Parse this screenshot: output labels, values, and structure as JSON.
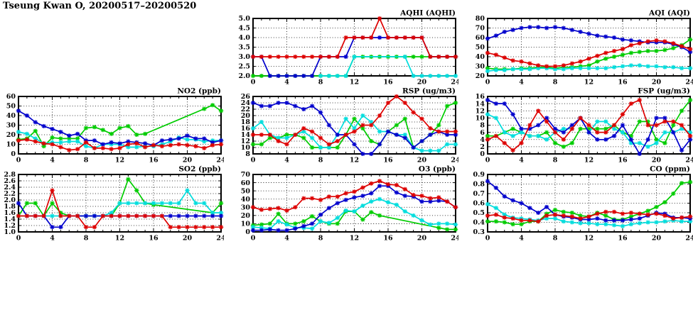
{
  "page_title": "Tseung Kwan O, 20200517–20200520",
  "x_axis": {
    "min": 0,
    "max": 24,
    "ticks": [
      0,
      4,
      8,
      12,
      16,
      20,
      24
    ],
    "minor_step": 1
  },
  "series_colors": {
    "day1": "#0000cc",
    "day2": "#dd0000",
    "day3": "#00cc00",
    "day4": "#00dddd"
  },
  "chart_data": [
    {
      "id": "aqhi",
      "type": "line",
      "title": "AQHI (AQHI)",
      "ylim": [
        2.0,
        5.0
      ],
      "ystep": 0.5,
      "ydec": 1,
      "grid": true,
      "series": [
        {
          "name": "green-day",
          "color": "#00cc00",
          "values": [
            2,
            2,
            2,
            2,
            2,
            2,
            2,
            2,
            2,
            2,
            2,
            2,
            3,
            3,
            3,
            3,
            3,
            3,
            3,
            3,
            3,
            3,
            3,
            3,
            3
          ]
        },
        {
          "name": "cyan-day",
          "color": "#00dddd",
          "values": [
            null,
            null,
            null,
            null,
            null,
            null,
            null,
            null,
            2,
            2,
            2,
            2,
            3,
            null,
            null,
            null,
            null,
            null,
            3,
            2,
            2,
            2,
            2,
            2,
            2
          ]
        },
        {
          "name": "blue-day",
          "color": "#0000cc",
          "values": [
            3,
            3,
            2,
            2,
            2,
            2,
            2,
            2,
            3,
            3,
            3,
            3,
            4,
            4,
            4,
            4,
            4,
            4,
            4,
            4,
            4,
            3,
            3,
            3,
            3
          ]
        },
        {
          "name": "red-day",
          "color": "#dd0000",
          "values": [
            3,
            3,
            3,
            3,
            3,
            3,
            3,
            3,
            3,
            3,
            3,
            4,
            4,
            4,
            4,
            5,
            4,
            4,
            4,
            4,
            4,
            3,
            3,
            3,
            3
          ]
        }
      ]
    },
    {
      "id": "aqi",
      "type": "line",
      "title": "AQI (AQI)",
      "ylim": [
        20,
        80
      ],
      "ystep": 10,
      "ydec": 0,
      "grid": true,
      "series": [
        {
          "name": "green-day",
          "color": "#00cc00",
          "values": [
            28,
            27,
            27,
            27,
            28,
            28,
            29,
            29,
            28,
            29,
            29,
            30,
            31,
            35,
            38,
            40,
            42,
            44,
            45,
            46,
            46,
            47,
            49,
            52,
            58
          ]
        },
        {
          "name": "cyan-day",
          "color": "#00dddd",
          "values": [
            25,
            26,
            26,
            27,
            27,
            27,
            28,
            28,
            27,
            27,
            28,
            28,
            28,
            28,
            28,
            29,
            30,
            31,
            31,
            30,
            30,
            29,
            29,
            28,
            28
          ]
        },
        {
          "name": "blue-day",
          "color": "#0000cc",
          "values": [
            59,
            62,
            66,
            68,
            70,
            71,
            71,
            70,
            71,
            70,
            68,
            66,
            64,
            62,
            61,
            60,
            58,
            57,
            56,
            55,
            55,
            55,
            53,
            50,
            45
          ]
        },
        {
          "name": "red-day",
          "color": "#dd0000",
          "values": [
            44,
            42,
            39,
            36,
            35,
            33,
            31,
            30,
            30,
            31,
            33,
            35,
            38,
            41,
            44,
            46,
            48,
            52,
            54,
            56,
            57,
            56,
            54,
            51,
            48
          ]
        }
      ]
    },
    {
      "id": "no2",
      "type": "line",
      "title": "NO2 (ppb)",
      "ylim": [
        0,
        60
      ],
      "ystep": 10,
      "ydec": 0,
      "grid": true,
      "series": [
        {
          "name": "green-day",
          "color": "#00cc00",
          "values": [
            15,
            16,
            24,
            8,
            17,
            16,
            16,
            16,
            27,
            28,
            25,
            21,
            27,
            29,
            20,
            21,
            null,
            null,
            null,
            null,
            null,
            null,
            47,
            51,
            45
          ]
        },
        {
          "name": "cyan-day",
          "color": "#00dddd",
          "values": [
            23,
            21,
            16,
            11,
            12,
            12,
            13,
            13,
            8,
            6,
            10,
            10,
            10,
            7,
            7,
            8,
            8,
            10,
            13,
            17,
            15,
            15,
            13,
            14,
            14
          ]
        },
        {
          "name": "blue-day",
          "color": "#0000cc",
          "values": [
            45,
            40,
            33,
            29,
            26,
            23,
            19,
            21,
            14,
            14,
            10,
            12,
            11,
            13,
            12,
            11,
            9,
            14,
            15,
            16,
            19,
            16,
            16,
            12,
            14
          ]
        },
        {
          "name": "red-day",
          "color": "#dd0000",
          "values": [
            14,
            15,
            13,
            11,
            10,
            7,
            4,
            5,
            12,
            6,
            6,
            5,
            6,
            10,
            11,
            7,
            9,
            8,
            9,
            10,
            9,
            8,
            6,
            9,
            10
          ]
        }
      ]
    },
    {
      "id": "rsp",
      "type": "line",
      "title": "RSP (ug/m3)",
      "ylim": [
        8,
        26
      ],
      "ystep": 2,
      "ydec": 0,
      "grid": true,
      "series": [
        {
          "name": "green-day",
          "color": "#00cc00",
          "values": [
            11,
            11,
            13,
            13,
            14,
            14,
            13,
            10,
            10,
            10,
            10,
            14,
            19,
            16,
            12,
            11,
            15,
            17,
            19,
            10,
            12,
            14,
            17,
            23,
            24
          ]
        },
        {
          "name": "cyan-day",
          "color": "#00dddd",
          "values": [
            16,
            18,
            14,
            13,
            13,
            14,
            15,
            13,
            10,
            10,
            14,
            19,
            16,
            20,
            18,
            15,
            15,
            14,
            14,
            10,
            9,
            9,
            9,
            11,
            11
          ]
        },
        {
          "name": "blue-day",
          "color": "#0000cc",
          "values": [
            24,
            23,
            23,
            24,
            24,
            23,
            22,
            23,
            21,
            17,
            14,
            14,
            11,
            8,
            8,
            11,
            15,
            14,
            13,
            10,
            12,
            14,
            15,
            14,
            14
          ]
        },
        {
          "name": "red-day",
          "color": "#dd0000",
          "values": [
            14,
            14,
            14,
            12,
            11,
            14,
            16,
            15,
            13,
            11,
            12,
            14,
            15,
            17,
            17,
            20,
            24,
            26,
            24,
            21,
            19,
            16,
            15,
            15,
            15
          ]
        }
      ]
    },
    {
      "id": "fsp",
      "type": "line",
      "title": "FSP (ug/m3)",
      "ylim": [
        0,
        16
      ],
      "ystep": 2,
      "ydec": 0,
      "grid": true,
      "series": [
        {
          "name": "green-day",
          "color": "#00cc00",
          "values": [
            5,
            5,
            6,
            7,
            6,
            5,
            5,
            6,
            3,
            2,
            3,
            7,
            7,
            7,
            7,
            8,
            6,
            5,
            9,
            9,
            4,
            3,
            8,
            12,
            15
          ]
        },
        {
          "name": "cyan-day",
          "color": "#00dddd",
          "values": [
            11,
            10,
            6,
            5,
            6,
            5,
            5,
            4,
            6,
            7,
            7,
            10,
            6,
            9,
            9,
            7,
            6,
            3,
            3,
            2,
            3,
            6,
            6,
            7,
            6
          ]
        },
        {
          "name": "blue-day",
          "color": "#0000cc",
          "values": [
            15,
            14,
            14,
            11,
            7,
            7,
            8,
            10,
            7,
            6,
            8,
            10,
            6,
            4,
            4,
            5,
            8,
            4,
            0,
            4,
            10,
            10,
            6,
            1,
            4
          ]
        },
        {
          "name": "red-day",
          "color": "#dd0000",
          "values": [
            4,
            5,
            3,
            1,
            3,
            8,
            12,
            9,
            6,
            4,
            7,
            10,
            8,
            6,
            6,
            8,
            11,
            14,
            15,
            8,
            8,
            9,
            9,
            8,
            5
          ]
        }
      ]
    },
    {
      "id": "so2",
      "type": "line",
      "title": "SO2 (ppb)",
      "ylim": [
        1.0,
        2.8
      ],
      "ystep": 0.2,
      "ydec": 1,
      "grid": true,
      "series": [
        {
          "name": "green-day",
          "color": "#00cc00",
          "values": [
            1.5,
            1.9,
            1.9,
            1.5,
            1.9,
            1.6,
            1.5,
            1.5,
            1.5,
            1.5,
            1.5,
            1.5,
            1.9,
            2.65,
            2.3,
            1.9,
            1.85,
            null,
            null,
            null,
            null,
            null,
            null,
            1.6,
            1.9
          ]
        },
        {
          "name": "cyan-day",
          "color": "#00dddd",
          "values": [
            1.5,
            1.5,
            1.5,
            1.5,
            1.5,
            1.5,
            1.5,
            1.5,
            1.5,
            1.5,
            1.5,
            1.6,
            1.9,
            1.9,
            1.9,
            1.9,
            1.9,
            1.9,
            1.9,
            1.9,
            2.3,
            1.9,
            1.9,
            1.6,
            1.6
          ]
        },
        {
          "name": "blue-day",
          "color": "#0000cc",
          "values": [
            1.9,
            1.5,
            1.5,
            1.5,
            1.15,
            1.15,
            1.5,
            1.5,
            1.5,
            1.5,
            1.5,
            1.5,
            1.5,
            1.5,
            1.5,
            1.5,
            1.5,
            1.5,
            1.5,
            1.5,
            1.5,
            1.5,
            1.5,
            1.5,
            1.5
          ]
        },
        {
          "name": "red-day",
          "color": "#dd0000",
          "values": [
            1.5,
            1.5,
            1.5,
            1.5,
            2.3,
            1.5,
            1.5,
            1.5,
            1.15,
            1.15,
            1.5,
            1.5,
            1.5,
            1.5,
            1.5,
            1.5,
            1.5,
            1.5,
            1.15,
            1.15,
            1.15,
            1.15,
            1.15,
            1.15,
            1.15
          ]
        }
      ]
    },
    {
      "id": "o3",
      "type": "line",
      "title": "O3 (ppb)",
      "ylim": [
        0,
        70
      ],
      "ystep": 10,
      "ydec": 0,
      "grid": true,
      "series": [
        {
          "name": "green-day",
          "color": "#00cc00",
          "values": [
            8,
            9,
            10,
            22,
            10,
            10,
            13,
            19,
            13,
            10,
            10,
            25,
            25,
            15,
            24,
            20,
            null,
            null,
            null,
            null,
            null,
            null,
            5,
            3,
            3
          ]
        },
        {
          "name": "cyan-day",
          "color": "#00dddd",
          "values": [
            6,
            5,
            4,
            13,
            9,
            5,
            5,
            4,
            13,
            11,
            17,
            26,
            25,
            32,
            37,
            40,
            36,
            33,
            25,
            20,
            14,
            9,
            10,
            10,
            9
          ]
        },
        {
          "name": "blue-day",
          "color": "#0000cc",
          "values": [
            2,
            2,
            3,
            2,
            2,
            4,
            7,
            10,
            21,
            29,
            35,
            39,
            42,
            44,
            47,
            56,
            56,
            48,
            44,
            43,
            37,
            37,
            38,
            37,
            30
          ]
        },
        {
          "name": "red-day",
          "color": "#dd0000",
          "values": [
            30,
            27,
            28,
            29,
            26,
            30,
            41,
            41,
            39,
            43,
            43,
            47,
            49,
            54,
            59,
            62,
            58,
            57,
            52,
            45,
            44,
            41,
            42,
            37,
            30
          ]
        }
      ]
    },
    {
      "id": "co",
      "type": "line",
      "title": "CO (ppm)",
      "ylim": [
        0.3,
        0.9
      ],
      "ystep": 0.1,
      "ydec": 1,
      "grid": true,
      "series": [
        {
          "name": "green-day",
          "color": "#00cc00",
          "values": [
            0.41,
            0.41,
            0.4,
            0.38,
            0.38,
            0.41,
            0.41,
            0.49,
            0.53,
            0.51,
            0.5,
            0.47,
            0.46,
            0.5,
            0.47,
            0.43,
            0.43,
            0.46,
            0.49,
            0.52,
            0.56,
            0.61,
            0.7,
            0.81,
            0.82
          ]
        },
        {
          "name": "cyan-day",
          "color": "#00dddd",
          "values": [
            0.59,
            0.55,
            0.48,
            0.45,
            0.44,
            0.43,
            0.42,
            0.44,
            0.44,
            0.41,
            0.4,
            0.39,
            0.39,
            0.38,
            0.38,
            0.37,
            0.36,
            0.38,
            0.39,
            0.4,
            0.4,
            0.41,
            0.42,
            0.41,
            0.41
          ]
        },
        {
          "name": "blue-day",
          "color": "#0000cc",
          "values": [
            0.83,
            0.76,
            0.67,
            0.63,
            0.6,
            0.55,
            0.5,
            0.56,
            0.48,
            0.46,
            0.45,
            0.43,
            0.43,
            0.44,
            0.42,
            0.42,
            0.42,
            0.43,
            0.44,
            0.47,
            0.5,
            0.49,
            0.45,
            0.45,
            0.44
          ]
        },
        {
          "name": "red-day",
          "color": "#dd0000",
          "values": [
            0.47,
            0.48,
            0.45,
            0.44,
            0.42,
            0.42,
            0.41,
            0.47,
            0.48,
            0.47,
            0.46,
            0.44,
            0.46,
            0.49,
            0.51,
            0.51,
            0.49,
            0.5,
            0.49,
            0.48,
            0.49,
            0.47,
            0.44,
            0.45,
            0.46
          ]
        }
      ]
    }
  ]
}
